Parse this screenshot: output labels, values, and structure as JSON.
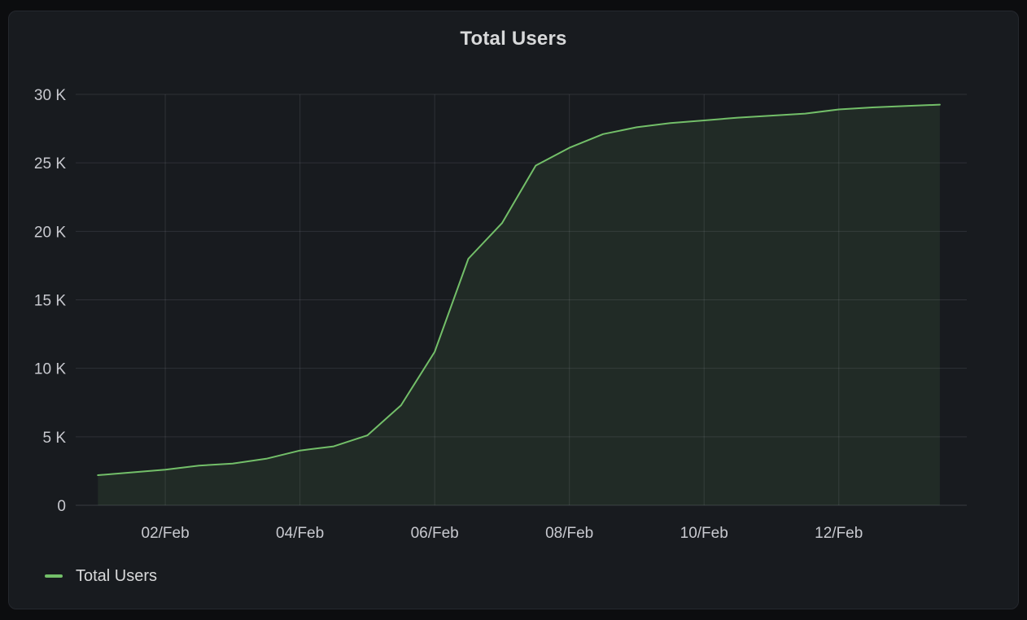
{
  "panel": {
    "title": "Total Users"
  },
  "legend": {
    "items": [
      {
        "label": "Total Users",
        "color": "#73BF69"
      }
    ]
  },
  "colors": {
    "page_bg": "#0c0d0f",
    "panel_bg": "#181b1f",
    "panel_border": "#25282e",
    "title_text": "#d8d9da",
    "tick_text": "#c8c9cf",
    "grid": "rgba(204,204,220,0.12)",
    "axis_baseline": "rgba(204,204,220,0.18)",
    "series_line": "#73BF69",
    "series_fill": "rgba(115,191,105,0.10)"
  },
  "chart_data": {
    "type": "area",
    "title": "Total Users",
    "xlabel": "",
    "ylabel": "",
    "grid": true,
    "legend_position": "bottom-left",
    "ylim": [
      0,
      30000
    ],
    "x_axis_range_days": [
      -0.33,
      12.9
    ],
    "t_days": [
      0,
      0.5,
      1,
      1.5,
      2,
      2.5,
      3,
      3.5,
      4,
      4.5,
      5,
      5.5,
      6,
      6.5,
      7,
      7.5,
      8,
      8.5,
      9,
      9.5,
      10,
      10.5,
      11,
      11.5,
      12,
      12.5
    ],
    "time_labels": [
      "01/Feb 00:00",
      "01/Feb 12:00",
      "02/Feb 00:00",
      "02/Feb 12:00",
      "03/Feb 00:00",
      "03/Feb 12:00",
      "04/Feb 00:00",
      "04/Feb 12:00",
      "05/Feb 00:00",
      "05/Feb 12:00",
      "06/Feb 00:00",
      "06/Feb 12:00",
      "07/Feb 00:00",
      "07/Feb 12:00",
      "08/Feb 00:00",
      "08/Feb 12:00",
      "09/Feb 00:00",
      "09/Feb 12:00",
      "10/Feb 00:00",
      "10/Feb 12:00",
      "11/Feb 00:00",
      "11/Feb 12:00",
      "12/Feb 00:00",
      "12/Feb 12:00",
      "13/Feb 00:00",
      "13/Feb 12:00"
    ],
    "series": [
      {
        "name": "Total Users",
        "color": "#73BF69",
        "values": [
          2200,
          2400,
          2600,
          2900,
          3050,
          3400,
          4000,
          4300,
          5100,
          7300,
          11200,
          18000,
          20600,
          24800,
          26100,
          27100,
          27600,
          27900,
          28100,
          28300,
          28450,
          28600,
          28900,
          29050,
          29150,
          29250
        ]
      }
    ],
    "x_ticks": [
      {
        "t": 1,
        "label": "02/Feb"
      },
      {
        "t": 3,
        "label": "04/Feb"
      },
      {
        "t": 5,
        "label": "06/Feb"
      },
      {
        "t": 7,
        "label": "08/Feb"
      },
      {
        "t": 9,
        "label": "10/Feb"
      },
      {
        "t": 11,
        "label": "12/Feb"
      }
    ],
    "y_ticks": [
      {
        "value": 0,
        "label": "0"
      },
      {
        "value": 5000,
        "label": "5 K"
      },
      {
        "value": 10000,
        "label": "10 K"
      },
      {
        "value": 15000,
        "label": "15 K"
      },
      {
        "value": 20000,
        "label": "20 K"
      },
      {
        "value": 25000,
        "label": "25 K"
      },
      {
        "value": 30000,
        "label": "30 K"
      }
    ]
  }
}
